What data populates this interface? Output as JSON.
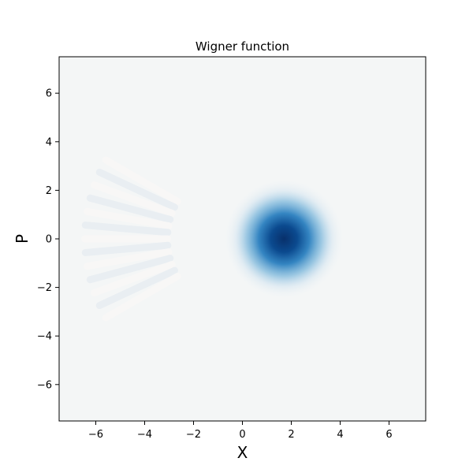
{
  "chart_data": {
    "type": "heatmap",
    "title": "Wigner function",
    "xlabel": "X",
    "ylabel": "P",
    "xlim": [
      -7.5,
      7.5
    ],
    "ylim": [
      -7.5,
      7.5
    ],
    "xticks": [
      -6,
      -4,
      -2,
      0,
      2,
      4,
      6
    ],
    "yticks": [
      -6,
      -4,
      -2,
      0,
      2,
      4,
      6
    ],
    "xtick_labels": [
      "−6",
      "−4",
      "−2",
      "0",
      "2",
      "4",
      "6"
    ],
    "ytick_labels": [
      "−6",
      "−4",
      "−2",
      "0",
      "2",
      "4",
      "6"
    ],
    "grid": false,
    "colormap": "RdBu",
    "background_color": "#f4f6f6",
    "peak": {
      "x": 1.7,
      "y": 0.0,
      "sigma": 0.75,
      "color": "#08306b"
    }
  }
}
